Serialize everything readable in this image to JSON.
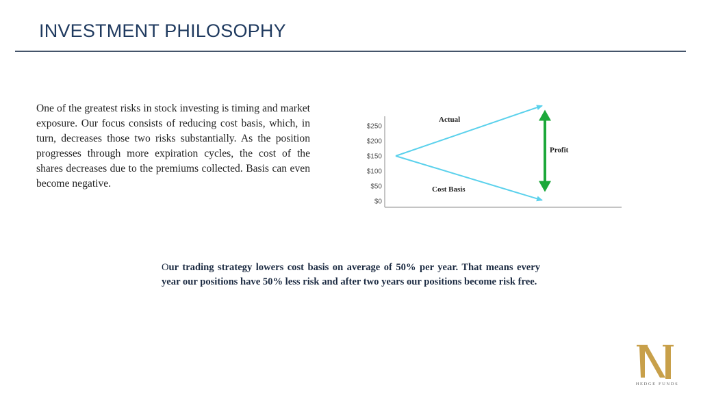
{
  "header": {
    "title": "INVESTMENT PHILOSOPHY"
  },
  "intro": {
    "text": "One of the greatest risks in stock investing is timing and market exposure. Our focus consists of reducing cost basis, which, in turn, decreases those two risks substantially. As the position progresses through more expiration cycles, the cost of the shares decreases due to the premiums collected. Basis can even become negative."
  },
  "note": {
    "lead": "O",
    "rest": "ur trading strategy lowers cost basis on average of 50% per year. That means every year our positions have 50% less risk and after two years our positions become risk free."
  },
  "chart_data": {
    "type": "line",
    "title": "",
    "xlabel": "",
    "ylabel": "",
    "yticks": [
      "$250",
      "$200",
      "$150",
      "$100",
      "$50",
      "$0"
    ],
    "ylim": [
      0,
      250
    ],
    "grid": false,
    "series": [
      {
        "name": "Actual",
        "x": [
          0,
          1
        ],
        "values": [
          150,
          317
        ]
      },
      {
        "name": "Cost Basis",
        "x": [
          0,
          1
        ],
        "values": [
          150,
          3
        ]
      }
    ],
    "annotations": [
      {
        "text": "Profit"
      }
    ],
    "colors": {
      "series": "#5bd1ec",
      "profit": "#1ca83a",
      "axis": "#888888"
    }
  },
  "logo": {
    "caption": "HEDGE FUNDS",
    "color": "#c8a04a"
  }
}
